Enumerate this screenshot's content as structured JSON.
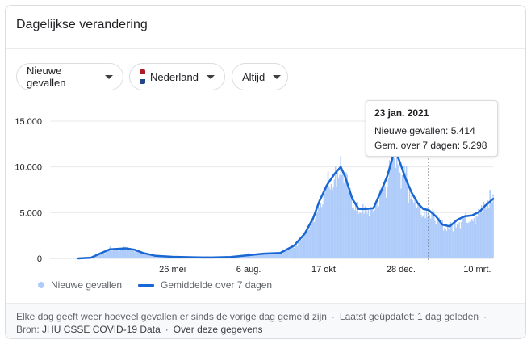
{
  "card": {
    "title": "Dagelijkse verandering"
  },
  "filters": {
    "metric": "Nieuwe gevallen",
    "country": "Nederland",
    "period": "Altijd"
  },
  "colors": {
    "bars": "#aecbfa",
    "line": "#1967d2",
    "flag_red": "#ae1c28",
    "flag_white": "#ffffff",
    "flag_blue": "#21468b"
  },
  "tooltip": {
    "date": "23 jan. 2021",
    "cases": "Nieuwe gevallen: 5.414",
    "avg": "Gem. over 7 dagen: 5.298"
  },
  "legend": {
    "bars": "Nieuwe gevallen",
    "line": "Gemiddelde over 7 dagen"
  },
  "footer": {
    "line1a": "Elke dag geeft weer hoeveel gevallen er sinds de vorige dag gemeld zijn",
    "dot": "·",
    "line1b": "Laatst geüpdatet: 1 dag geleden",
    "source_label": "Bron:",
    "source_link": "JHU CSSE COVID-19 Data",
    "about_link": "Over deze gegevens"
  },
  "chart_data": {
    "type": "bar",
    "y_ticks": [
      "15.000",
      "10.000",
      "5.000",
      "0"
    ],
    "y_tick_values": [
      15000,
      10000,
      5000,
      0
    ],
    "ylim": [
      0,
      15000
    ],
    "x_tick_labels": [
      "26 mei",
      "6 aug.",
      "17 okt.",
      "28 dec.",
      "10 mrt."
    ],
    "x_tick_dates": [
      "2020-05-26",
      "2020-08-06",
      "2020-10-17",
      "2020-12-28",
      "2021-03-10"
    ],
    "x_range": [
      "2020-02-27",
      "2021-03-25"
    ],
    "highlight_date": "2021-01-23",
    "series": [
      {
        "name": "Gemiddelde over 7 dagen",
        "kind": "line",
        "points": [
          [
            "2020-02-27",
            0
          ],
          [
            "2020-03-10",
            80
          ],
          [
            "2020-03-20",
            600
          ],
          [
            "2020-03-28",
            1000
          ],
          [
            "2020-04-05",
            1050
          ],
          [
            "2020-04-12",
            1100
          ],
          [
            "2020-04-20",
            950
          ],
          [
            "2020-04-28",
            600
          ],
          [
            "2020-05-10",
            280
          ],
          [
            "2020-05-26",
            180
          ],
          [
            "2020-06-15",
            120
          ],
          [
            "2020-07-01",
            100
          ],
          [
            "2020-07-20",
            160
          ],
          [
            "2020-08-06",
            350
          ],
          [
            "2020-08-20",
            520
          ],
          [
            "2020-09-05",
            600
          ],
          [
            "2020-09-18",
            1400
          ],
          [
            "2020-09-28",
            2700
          ],
          [
            "2020-10-06",
            4400
          ],
          [
            "2020-10-12",
            6300
          ],
          [
            "2020-10-19",
            8000
          ],
          [
            "2020-10-26",
            9200
          ],
          [
            "2020-11-01",
            10000
          ],
          [
            "2020-11-05",
            9000
          ],
          [
            "2020-11-12",
            6500
          ],
          [
            "2020-11-18",
            5400
          ],
          [
            "2020-11-25",
            5400
          ],
          [
            "2020-12-02",
            5500
          ],
          [
            "2020-12-09",
            7300
          ],
          [
            "2020-12-15",
            9000
          ],
          [
            "2020-12-20",
            11000
          ],
          [
            "2020-12-23",
            11700
          ],
          [
            "2020-12-27",
            10500
          ],
          [
            "2021-01-01",
            8800
          ],
          [
            "2021-01-07",
            7200
          ],
          [
            "2021-01-13",
            6000
          ],
          [
            "2021-01-18",
            5400
          ],
          [
            "2021-01-23",
            5298
          ],
          [
            "2021-01-30",
            4600
          ],
          [
            "2021-02-05",
            3700
          ],
          [
            "2021-02-12",
            3500
          ],
          [
            "2021-02-19",
            4200
          ],
          [
            "2021-02-26",
            4600
          ],
          [
            "2021-03-05",
            4700
          ],
          [
            "2021-03-12",
            5100
          ],
          [
            "2021-03-18",
            5800
          ],
          [
            "2021-03-25",
            6500
          ]
        ]
      },
      {
        "name": "Nieuwe gevallen",
        "kind": "bars",
        "points": [
          [
            "2020-03-28",
            1300
          ],
          [
            "2020-04-10",
            1300
          ],
          [
            "2020-08-06",
            620
          ],
          [
            "2020-10-20",
            9500
          ],
          [
            "2020-11-01",
            11200
          ],
          [
            "2020-12-20",
            12500
          ],
          [
            "2021-01-02",
            10100
          ],
          [
            "2021-01-23",
            5414
          ],
          [
            "2021-02-05",
            4200
          ],
          [
            "2021-03-16",
            6200
          ],
          [
            "2021-03-22",
            7500
          ]
        ]
      }
    ]
  }
}
